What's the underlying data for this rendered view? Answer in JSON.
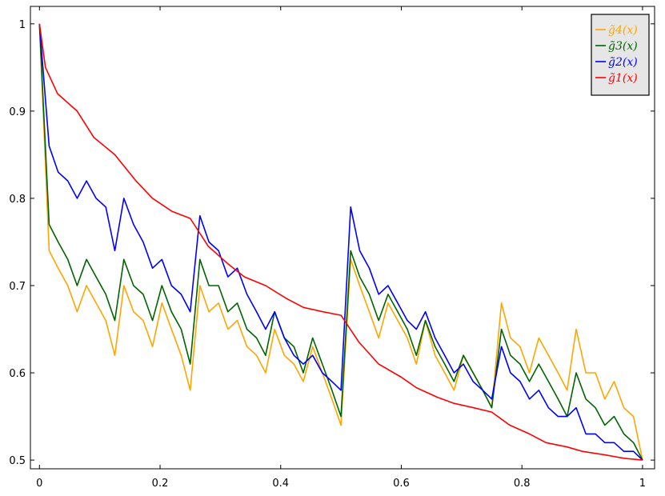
{
  "chart_data": {
    "type": "line",
    "title": "",
    "xlabel": "",
    "ylabel": "",
    "xlim": [
      -0.015,
      1.02
    ],
    "ylim": [
      0.49,
      1.02
    ],
    "x_ticks": [
      0,
      0.2,
      0.4,
      0.6,
      0.8,
      1
    ],
    "x_tick_labels": [
      "0",
      "0.2",
      "0.4",
      "0.6",
      "0.8",
      "1"
    ],
    "y_ticks": [
      0.5,
      0.6,
      0.7,
      0.8,
      0.9,
      1
    ],
    "y_tick_labels": [
      "0.5",
      "0.6",
      "0.7",
      "0.8",
      "0.9",
      "1"
    ],
    "grid": false,
    "legend_position": "top-right",
    "series": [
      {
        "name": "g̃4(x)",
        "color": "#ffa500",
        "x": [
          0,
          0.016,
          0.031,
          0.047,
          0.0625,
          0.078,
          0.094,
          0.11,
          0.125,
          0.14,
          0.156,
          0.172,
          0.1875,
          0.203,
          0.219,
          0.235,
          0.25,
          0.266,
          0.281,
          0.297,
          0.3125,
          0.328,
          0.344,
          0.36,
          0.375,
          0.39,
          0.406,
          0.422,
          0.4375,
          0.453,
          0.469,
          0.485,
          0.5,
          0.516,
          0.531,
          0.547,
          0.5625,
          0.578,
          0.594,
          0.61,
          0.625,
          0.64,
          0.656,
          0.672,
          0.6875,
          0.703,
          0.719,
          0.735,
          0.75,
          0.766,
          0.781,
          0.797,
          0.8125,
          0.828,
          0.844,
          0.86,
          0.875,
          0.89,
          0.906,
          0.922,
          0.9375,
          0.953,
          0.969,
          0.985,
          1
        ],
        "y": [
          1,
          0.74,
          0.72,
          0.7,
          0.67,
          0.7,
          0.68,
          0.66,
          0.62,
          0.7,
          0.67,
          0.66,
          0.63,
          0.68,
          0.65,
          0.62,
          0.58,
          0.7,
          0.67,
          0.68,
          0.65,
          0.66,
          0.63,
          0.62,
          0.6,
          0.65,
          0.62,
          0.61,
          0.59,
          0.63,
          0.6,
          0.57,
          0.54,
          0.73,
          0.7,
          0.67,
          0.64,
          0.68,
          0.66,
          0.64,
          0.61,
          0.66,
          0.62,
          0.6,
          0.58,
          0.62,
          0.6,
          0.58,
          0.56,
          0.68,
          0.64,
          0.63,
          0.6,
          0.64,
          0.62,
          0.6,
          0.58,
          0.65,
          0.6,
          0.6,
          0.57,
          0.59,
          0.56,
          0.55,
          0.5
        ]
      },
      {
        "name": "g̃3(x)",
        "color": "#006400",
        "x": [
          0,
          0.016,
          0.031,
          0.047,
          0.0625,
          0.078,
          0.094,
          0.11,
          0.125,
          0.14,
          0.156,
          0.172,
          0.1875,
          0.203,
          0.219,
          0.235,
          0.25,
          0.266,
          0.281,
          0.297,
          0.3125,
          0.328,
          0.344,
          0.36,
          0.375,
          0.39,
          0.406,
          0.422,
          0.4375,
          0.453,
          0.469,
          0.485,
          0.5,
          0.516,
          0.531,
          0.547,
          0.5625,
          0.578,
          0.594,
          0.61,
          0.625,
          0.64,
          0.656,
          0.672,
          0.6875,
          0.703,
          0.719,
          0.735,
          0.75,
          0.766,
          0.781,
          0.797,
          0.8125,
          0.828,
          0.844,
          0.86,
          0.875,
          0.89,
          0.906,
          0.922,
          0.9375,
          0.953,
          0.969,
          0.985,
          1
        ],
        "y": [
          1,
          0.77,
          0.75,
          0.73,
          0.7,
          0.73,
          0.71,
          0.69,
          0.66,
          0.73,
          0.7,
          0.69,
          0.66,
          0.7,
          0.67,
          0.65,
          0.61,
          0.73,
          0.7,
          0.7,
          0.67,
          0.68,
          0.65,
          0.64,
          0.62,
          0.67,
          0.64,
          0.63,
          0.6,
          0.64,
          0.61,
          0.58,
          0.55,
          0.74,
          0.71,
          0.69,
          0.66,
          0.69,
          0.67,
          0.65,
          0.62,
          0.66,
          0.63,
          0.61,
          0.59,
          0.62,
          0.6,
          0.58,
          0.56,
          0.65,
          0.62,
          0.61,
          0.59,
          0.61,
          0.59,
          0.57,
          0.55,
          0.6,
          0.57,
          0.56,
          0.54,
          0.55,
          0.53,
          0.52,
          0.5
        ]
      },
      {
        "name": "g̃2(x)",
        "color": "#0000ff",
        "x": [
          0,
          0.016,
          0.031,
          0.047,
          0.0625,
          0.078,
          0.094,
          0.11,
          0.125,
          0.14,
          0.156,
          0.172,
          0.1875,
          0.203,
          0.219,
          0.235,
          0.25,
          0.266,
          0.281,
          0.297,
          0.3125,
          0.328,
          0.344,
          0.36,
          0.375,
          0.39,
          0.406,
          0.422,
          0.4375,
          0.453,
          0.469,
          0.485,
          0.5,
          0.516,
          0.531,
          0.547,
          0.5625,
          0.578,
          0.594,
          0.61,
          0.625,
          0.64,
          0.656,
          0.672,
          0.6875,
          0.703,
          0.719,
          0.735,
          0.75,
          0.766,
          0.781,
          0.797,
          0.8125,
          0.828,
          0.844,
          0.86,
          0.875,
          0.89,
          0.906,
          0.922,
          0.9375,
          0.953,
          0.969,
          0.985,
          1
        ],
        "y": [
          1,
          0.86,
          0.83,
          0.82,
          0.8,
          0.82,
          0.8,
          0.79,
          0.74,
          0.8,
          0.77,
          0.75,
          0.72,
          0.73,
          0.7,
          0.69,
          0.67,
          0.78,
          0.75,
          0.74,
          0.71,
          0.72,
          0.69,
          0.67,
          0.65,
          0.67,
          0.64,
          0.62,
          0.61,
          0.62,
          0.6,
          0.59,
          0.58,
          0.79,
          0.74,
          0.72,
          0.69,
          0.7,
          0.68,
          0.66,
          0.65,
          0.67,
          0.64,
          0.62,
          0.6,
          0.61,
          0.59,
          0.58,
          0.57,
          0.63,
          0.6,
          0.59,
          0.57,
          0.58,
          0.56,
          0.55,
          0.55,
          0.56,
          0.53,
          0.53,
          0.52,
          0.52,
          0.51,
          0.51,
          0.5
        ]
      },
      {
        "name": "g̃1(x)",
        "color": "#ff0000",
        "x": [
          0,
          0.01,
          0.03,
          0.0625,
          0.09,
          0.125,
          0.16,
          0.1875,
          0.22,
          0.25,
          0.28,
          0.3125,
          0.34,
          0.375,
          0.41,
          0.4375,
          0.47,
          0.5,
          0.53,
          0.5625,
          0.6,
          0.625,
          0.66,
          0.6875,
          0.72,
          0.75,
          0.78,
          0.8125,
          0.84,
          0.875,
          0.9,
          0.9375,
          0.97,
          1
        ],
        "y": [
          1,
          0.95,
          0.92,
          0.9,
          0.87,
          0.85,
          0.82,
          0.8,
          0.785,
          0.777,
          0.745,
          0.725,
          0.71,
          0.7,
          0.685,
          0.675,
          0.67,
          0.666,
          0.635,
          0.61,
          0.595,
          0.583,
          0.572,
          0.565,
          0.56,
          0.555,
          0.54,
          0.53,
          0.52,
          0.515,
          0.51,
          0.506,
          0.502,
          0.5
        ]
      }
    ]
  },
  "legend": {
    "items": [
      {
        "label": "g̃4(x)",
        "color": "#ffa500"
      },
      {
        "label": "g̃3(x)",
        "color": "#006400"
      },
      {
        "label": "g̃2(x)",
        "color": "#0000ff"
      },
      {
        "label": "g̃1(x)",
        "color": "#ff0000"
      }
    ]
  }
}
